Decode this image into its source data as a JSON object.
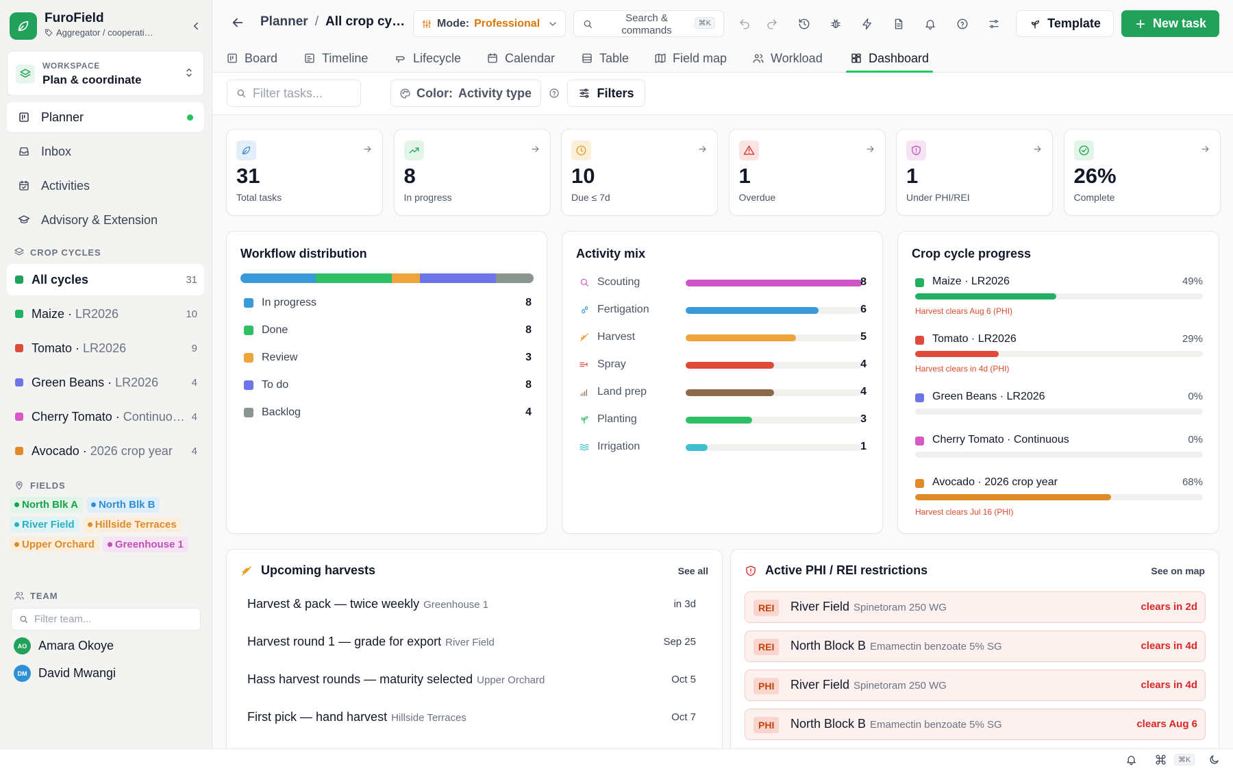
{
  "brand": {
    "name": "FuroField",
    "subtitle": "Aggregator / cooperati…"
  },
  "workspace": {
    "label": "WORKSPACE",
    "value": "Plan & coordinate"
  },
  "nav": [
    {
      "label": "Planner",
      "icon": "planner-icon",
      "active": true
    },
    {
      "label": "Inbox",
      "icon": "inbox-icon"
    },
    {
      "label": "Activities",
      "icon": "calendar-check-icon"
    },
    {
      "label": "Advisory & Extension",
      "icon": "graduation-cap-icon"
    }
  ],
  "crop_cycles": {
    "heading": "CROP CYCLES",
    "items": [
      {
        "name": "All cycles",
        "sub": "",
        "count": "31",
        "color": "#22a15a",
        "active": true
      },
      {
        "name": "Maize",
        "sub": "LR2026",
        "count": "10",
        "color": "#22b163"
      },
      {
        "name": "Tomato",
        "sub": "LR2026",
        "count": "9",
        "color": "#e04a3a"
      },
      {
        "name": "Green Beans",
        "sub": "LR2026",
        "count": "4",
        "color": "#6d75e8"
      },
      {
        "name": "Cherry Tomato",
        "sub": "Continuo…",
        "count": "4",
        "color": "#d659c4"
      },
      {
        "name": "Avocado",
        "sub": "2026 crop year",
        "count": "4",
        "color": "#e08a2a"
      }
    ]
  },
  "fields": {
    "heading": "FIELDS",
    "items": [
      {
        "label": "North Blk A",
        "color": "#16a34a",
        "bg": "#e3f4e8"
      },
      {
        "label": "North Blk B",
        "color": "#2e8fd6",
        "bg": "#e0eef9"
      },
      {
        "label": "River Field",
        "color": "#2bb0c4",
        "bg": "#e0f3f5"
      },
      {
        "label": "Hillside Terraces",
        "color": "#e08a2a",
        "bg": "#fbeedd"
      },
      {
        "label": "Upper Orchard",
        "color": "#e08a2a",
        "bg": "#fbeedd"
      },
      {
        "label": "Greenhouse 1",
        "color": "#c04fb8",
        "bg": "#f6e3f4"
      }
    ]
  },
  "team": {
    "heading": "TEAM",
    "filter_placeholder": "Filter team...",
    "members": [
      {
        "initials": "AO",
        "name": "Amara Okoye",
        "color": "#22a15a"
      },
      {
        "initials": "DM",
        "name": "David Mwangi",
        "color": "#2e8fd6"
      }
    ]
  },
  "topbar": {
    "crumb_root": "Planner",
    "crumb_sep": "/",
    "crumb_current": "All crop cy…",
    "mode_label": "Mode:",
    "mode_value": "Professional",
    "search_text": "Search & commands",
    "search_kbd": "⌘K",
    "template_label": "Template",
    "new_task_label": "New task"
  },
  "tabs": [
    {
      "label": "Board",
      "icon": "board-icon"
    },
    {
      "label": "Timeline",
      "icon": "timeline-icon"
    },
    {
      "label": "Lifecycle",
      "icon": "lifecycle-icon"
    },
    {
      "label": "Calendar",
      "icon": "calendar-icon"
    },
    {
      "label": "Table",
      "icon": "table-icon"
    },
    {
      "label": "Field map",
      "icon": "map-icon"
    },
    {
      "label": "Workload",
      "icon": "users-icon"
    },
    {
      "label": "Dashboard",
      "icon": "dashboard-icon",
      "active": true
    }
  ],
  "filters": {
    "task_placeholder": "Filter tasks...",
    "color_label": "Color:",
    "color_value": "Activity type",
    "filters_label": "Filters"
  },
  "stats": [
    {
      "value": "31",
      "label": "Total tasks",
      "icon": "leaf-icon",
      "color": "#2e8fd6",
      "bg": "#e3eef9"
    },
    {
      "value": "8",
      "label": "In progress",
      "icon": "trending-up-icon",
      "color": "#22a15a",
      "bg": "#e3f4e8"
    },
    {
      "value": "10",
      "label": "Due ≤ 7d",
      "icon": "clock-icon",
      "color": "#e89a1a",
      "bg": "#fcefd9"
    },
    {
      "value": "1",
      "label": "Overdue",
      "icon": "alert-triangle-icon",
      "color": "#dc2626",
      "bg": "#fbe3e1"
    },
    {
      "value": "1",
      "label": "Under PHI/REI",
      "icon": "shield-icon",
      "color": "#c04fb8",
      "bg": "#f6e3f4"
    },
    {
      "value": "26%",
      "label": "Complete",
      "icon": "check-circle-icon",
      "color": "#16a34a",
      "bg": "#e3f4e8"
    }
  ],
  "workflow": {
    "title": "Workflow distribution",
    "total": 31,
    "rows": [
      {
        "label": "In progress",
        "count": "8",
        "value": 8,
        "color": "#3a9ad9"
      },
      {
        "label": "Done",
        "count": "8",
        "value": 8,
        "color": "#2fbf67"
      },
      {
        "label": "Review",
        "count": "3",
        "value": 3,
        "color": "#eda43a"
      },
      {
        "label": "To do",
        "count": "8",
        "value": 8,
        "color": "#6d75e8"
      },
      {
        "label": "Backlog",
        "count": "4",
        "value": 4,
        "color": "#8b958f"
      }
    ]
  },
  "activity_mix": {
    "title": "Activity mix",
    "max": 8,
    "rows": [
      {
        "label": "Scouting",
        "count": "8",
        "value": 8,
        "color": "#cf55c6",
        "icon": "search-icon"
      },
      {
        "label": "Fertigation",
        "count": "6",
        "value": 6,
        "color": "#3a9ad9",
        "icon": "droplets-icon"
      },
      {
        "label": "Harvest",
        "count": "5",
        "value": 5,
        "color": "#eda43a",
        "icon": "wheat-icon"
      },
      {
        "label": "Spray",
        "count": "4",
        "value": 4,
        "color": "#e04a3a",
        "icon": "spray-icon"
      },
      {
        "label": "Land prep",
        "count": "4",
        "value": 4,
        "color": "#8d6a4a",
        "icon": "bar-chart-icon"
      },
      {
        "label": "Planting",
        "count": "3",
        "value": 3,
        "color": "#2fbf67",
        "icon": "sprout-icon"
      },
      {
        "label": "Irrigation",
        "count": "1",
        "value": 1,
        "color": "#3fbfcf",
        "icon": "waves-icon"
      }
    ]
  },
  "crop_progress": {
    "title": "Crop cycle progress",
    "rows": [
      {
        "label": "Maize · LR2026",
        "pct": "49%",
        "value": 49,
        "color": "#22b163",
        "note": "Harvest clears Aug 6 (PHI)"
      },
      {
        "label": "Tomato · LR2026",
        "pct": "29%",
        "value": 29,
        "color": "#e04a3a",
        "note": "Harvest clears in 4d (PHI)"
      },
      {
        "label": "Green Beans · LR2026",
        "pct": "0%",
        "value": 0,
        "color": "#6d75e8",
        "note": ""
      },
      {
        "label": "Cherry Tomato · Continuous",
        "pct": "0%",
        "value": 0,
        "color": "#d659c4",
        "note": ""
      },
      {
        "label": "Avocado · 2026 crop year",
        "pct": "68%",
        "value": 68,
        "color": "#e08a2a",
        "note": "Harvest clears Jul 16 (PHI)"
      }
    ]
  },
  "harvests": {
    "title": "Upcoming harvests",
    "see_all": "See all",
    "items": [
      {
        "task": "Harvest & pack — twice weekly",
        "field": "Greenhouse 1",
        "when": "in 3d"
      },
      {
        "task": "Harvest round 1 — grade for export",
        "field": "River Field",
        "when": "Sep 25"
      },
      {
        "task": "Hass harvest rounds — maturity selected",
        "field": "Upper Orchard",
        "when": "Oct 5"
      },
      {
        "task": "First pick — hand harvest",
        "field": "Hillside Terraces",
        "when": "Oct 7"
      }
    ]
  },
  "restrictions": {
    "title": "Active PHI / REI restrictions",
    "see_map": "See on map",
    "items": [
      {
        "type": "REI",
        "field": "River Field",
        "product": "Spinetoram 250 WG",
        "clears": "clears in 2d"
      },
      {
        "type": "REI",
        "field": "North Block B",
        "product": "Emamectin benzoate 5% SG",
        "clears": "clears in 4d"
      },
      {
        "type": "PHI",
        "field": "River Field",
        "product": "Spinetoram 250 WG",
        "clears": "clears in 4d"
      },
      {
        "type": "PHI",
        "field": "North Block B",
        "product": "Emamectin benzoate 5% SG",
        "clears": "clears Aug 6"
      }
    ]
  },
  "bottombar": {
    "kbd": "⌘K"
  }
}
